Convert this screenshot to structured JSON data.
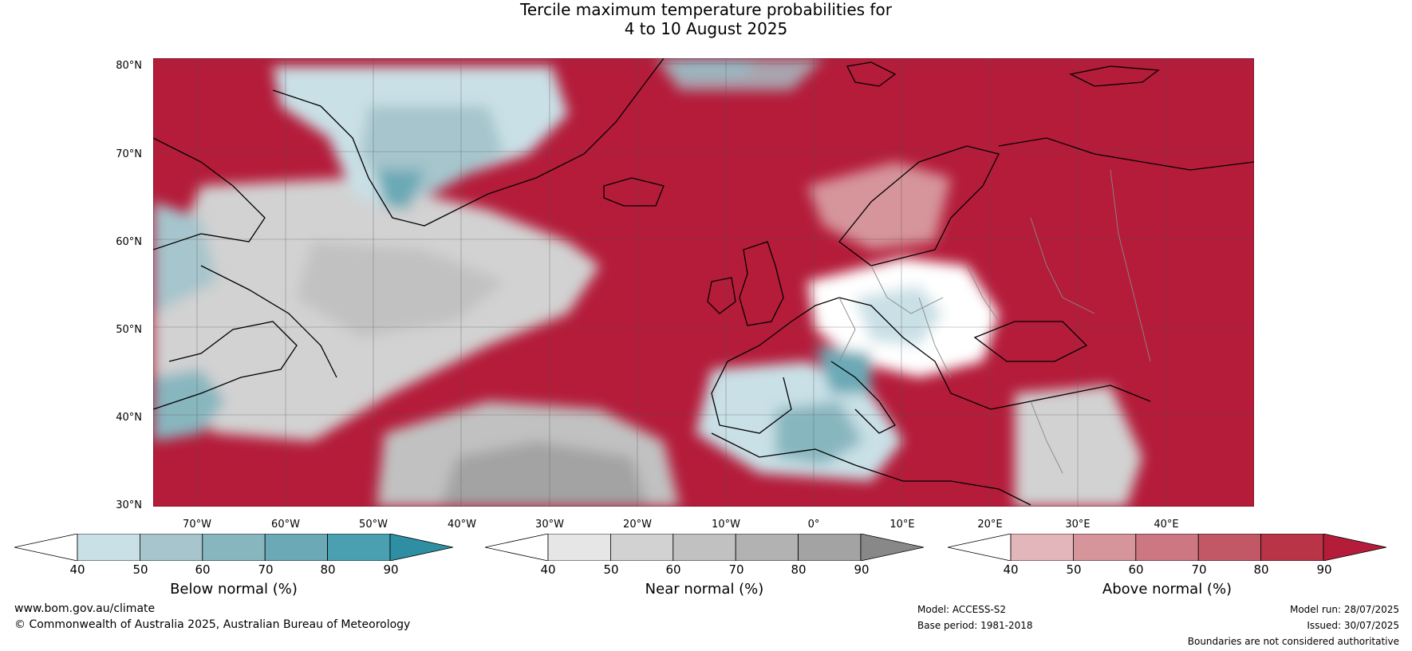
{
  "title": {
    "line1": "Tercile maximum temperature probabilities for",
    "line2": "4 to 10 August 2025"
  },
  "map": {
    "lat_labels": [
      "80°N",
      "70°N",
      "60°N",
      "50°N",
      "40°N",
      "30°N"
    ],
    "lat_values": [
      80,
      70,
      60,
      50,
      40,
      30
    ],
    "lon_labels": [
      "70°W",
      "60°W",
      "50°W",
      "40°W",
      "30°W",
      "20°W",
      "10°W",
      "0°",
      "10°E",
      "20°E",
      "30°E",
      "40°E"
    ],
    "lon_values": [
      -70,
      -60,
      -50,
      -40,
      -30,
      -20,
      -10,
      0,
      10,
      20,
      30,
      40
    ],
    "extent": {
      "lon_min": -75,
      "lon_max": 50,
      "lat_min": 30,
      "lat_max": 81
    }
  },
  "colorbars": [
    {
      "label": "Below normal (%)",
      "ticks": [
        "40",
        "50",
        "60",
        "70",
        "80",
        "90"
      ],
      "colors": [
        "#ffffff",
        "#c9e0e6",
        "#a6c5cc",
        "#88b6bf",
        "#6aa9b5",
        "#4a9fb1",
        "#2e8fa3"
      ]
    },
    {
      "label": "Near normal (%)",
      "ticks": [
        "40",
        "50",
        "60",
        "70",
        "80",
        "90"
      ],
      "colors": [
        "#ffffff",
        "#e6e6e6",
        "#d2d2d2",
        "#c1c1c1",
        "#b2b2b2",
        "#a3a3a3",
        "#888888"
      ]
    },
    {
      "label": "Above normal (%)",
      "ticks": [
        "40",
        "50",
        "60",
        "70",
        "80",
        "90"
      ],
      "colors": [
        "#ffffff",
        "#e3b6bc",
        "#d6949b",
        "#cc7781",
        "#c25866",
        "#b93447",
        "#b41c3a"
      ]
    }
  ],
  "footer": {
    "website": "www.bom.gov.au/climate",
    "copyright": "© Commonwealth of Australia 2025, Australian Bureau of Meteorology",
    "model": "Model: ACCESS-S2",
    "base_period": "Base period: 1981-2018",
    "model_run": "Model run: 28/07/2025",
    "issued": "Issued: 30/07/2025",
    "boundaries": "Boundaries are not considered authoritative"
  }
}
